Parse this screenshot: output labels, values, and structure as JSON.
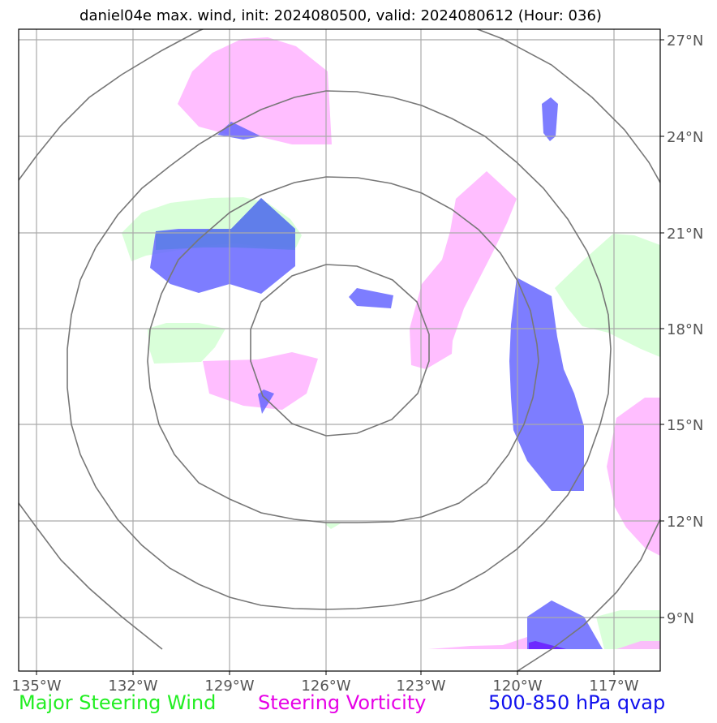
{
  "title": "daniel04e max. wind, init: 2024080500, valid: 2024080612 (Hour: 036)",
  "map": {
    "lon_labels": [
      "135°W",
      "132°W",
      "129°W",
      "126°W",
      "123°W",
      "120°W",
      "117°W"
    ],
    "lat_labels": [
      "27°N",
      "24°N",
      "21°N",
      "18°N",
      "15°N",
      "12°N",
      "9°N"
    ],
    "center": {
      "lon": "126°W",
      "lat": "17°N"
    },
    "colors": {
      "steering_wind": "#ccffcc",
      "steering_vorticity": "#ffb3ff",
      "qvap": "#6666ff",
      "range_rings": "#777777",
      "grid": "#aaaaaa"
    }
  },
  "legend": {
    "steering_wind": "Major Steering Wind",
    "steering_vorticity": "Steering Vorticity",
    "qvap": "500-850 hPa qvap"
  }
}
